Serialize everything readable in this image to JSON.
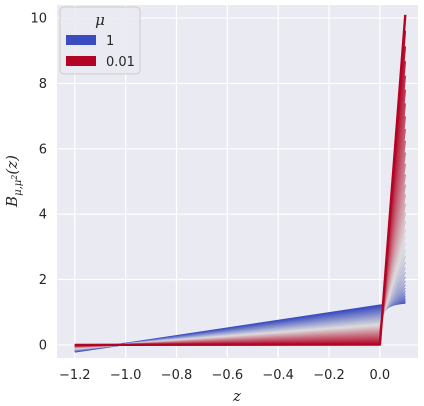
{
  "chart_data": {
    "type": "line",
    "xlabel": "z",
    "ylabel": "B_{μ,μ²}(z)",
    "xlim": [
      -1.27,
      0.15
    ],
    "ylim": [
      -0.4,
      10.4
    ],
    "xticks": [
      -1.2,
      -1.0,
      -0.8,
      -0.6,
      -0.4,
      -0.2,
      0.0
    ],
    "xtick_labels": [
      "−1.2",
      "−1.0",
      "−0.8",
      "−0.6",
      "−0.4",
      "−0.2",
      "0.0"
    ],
    "yticks": [
      0,
      2,
      4,
      6,
      8,
      10
    ],
    "ytick_labels": [
      "0",
      "2",
      "4",
      "6",
      "8",
      "10"
    ],
    "grid": true,
    "legend": {
      "title": "μ",
      "placement": "top-left",
      "entries": [
        {
          "label": "1",
          "color": "#3b4cc0"
        },
        {
          "label": "0.01",
          "color": "#b40426"
        }
      ]
    },
    "colormap": "coolwarm",
    "series_count": 40,
    "mu_range": [
      1,
      0.01
    ],
    "x": [
      -1.2,
      0.0,
      0.1
    ],
    "series": [
      {
        "mu": 1,
        "values": [
          -0.2,
          1.2,
          1.3
        ]
      },
      {
        "mu": 0.01,
        "values": [
          0.0,
          0.01,
          10.1
        ]
      }
    ]
  },
  "colors": {
    "background": "#eaeaf2",
    "grid": "#ffffff",
    "mu_high": "#3b4cc0",
    "mu_mid": "#dddddd",
    "mu_low": "#b40426"
  }
}
